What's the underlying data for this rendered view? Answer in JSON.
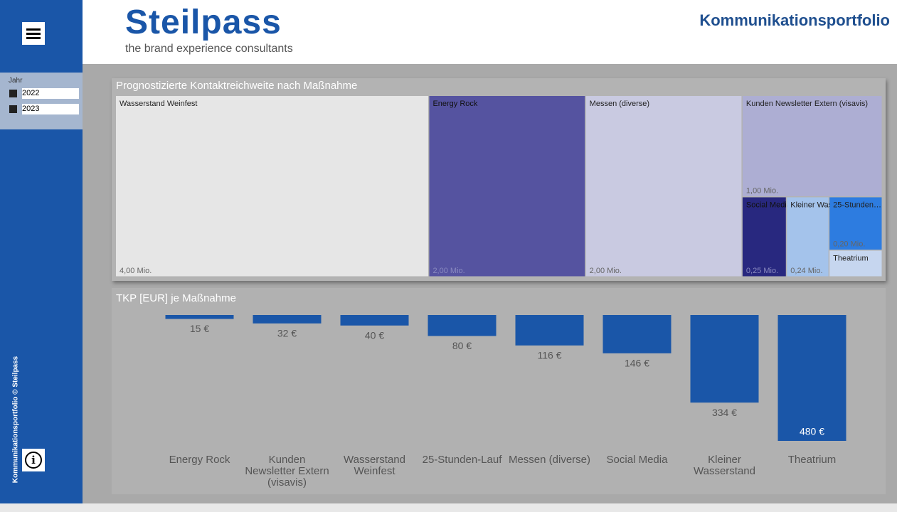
{
  "header": {
    "logo": "Steilpass",
    "tagline": "the brand experience consultants",
    "title": "Kommunikationsportfolio"
  },
  "sidebar": {
    "filter_label": "Jahr",
    "filter_options": [
      "2022",
      "2023"
    ],
    "footer": "Kommunikationsportfolio © Steilpass"
  },
  "chart_data": [
    {
      "type": "treemap",
      "title": "Prognostizierte Kontaktreichweite nach Maßnahme",
      "categories": [
        "Wasserstand Weinfest",
        "Energy Rock",
        "Messen (diverse)",
        "Kunden Newsletter Extern (visavis)",
        "Social Media",
        "25-Stunden…",
        "Kleiner Wasserstand",
        "Theatrium"
      ],
      "values": [
        4.0,
        2.0,
        2.0,
        1.0,
        0.25,
        0.2,
        0.24,
        0.1
      ],
      "value_labels": [
        "4,00 Mio.",
        "2,00 Mio.",
        "2,00 Mio.",
        "1,00 Mio.",
        "0,25 Mio.",
        "0,20 Mio.",
        "0,24 Mio.",
        null
      ],
      "colors": [
        "#e6e6e6",
        "#5553a0",
        "#c9cae1",
        "#adaed3",
        "#28287f",
        "#2d7ce0",
        "#a4c3eb",
        "#c6d6ef"
      ]
    },
    {
      "type": "bar",
      "title": "TKP [EUR] je Maßnahme",
      "categories": [
        "Energy Rock",
        "Kunden Newsletter Extern (visavis)",
        "Wasserstand Weinfest",
        "25-Stunden-Lauf",
        "Messen (diverse)",
        "Social Media",
        "Kleiner Wasserstand",
        "Theatrium"
      ],
      "values": [
        15,
        32,
        40,
        80,
        116,
        146,
        334,
        480
      ],
      "value_labels": [
        "15 €",
        "32 €",
        "40 €",
        "80 €",
        "116 €",
        "146 €",
        "334 €",
        "480 €"
      ],
      "color": "#1a56a8",
      "ylim": [
        0,
        480
      ],
      "inverted": true
    }
  ]
}
